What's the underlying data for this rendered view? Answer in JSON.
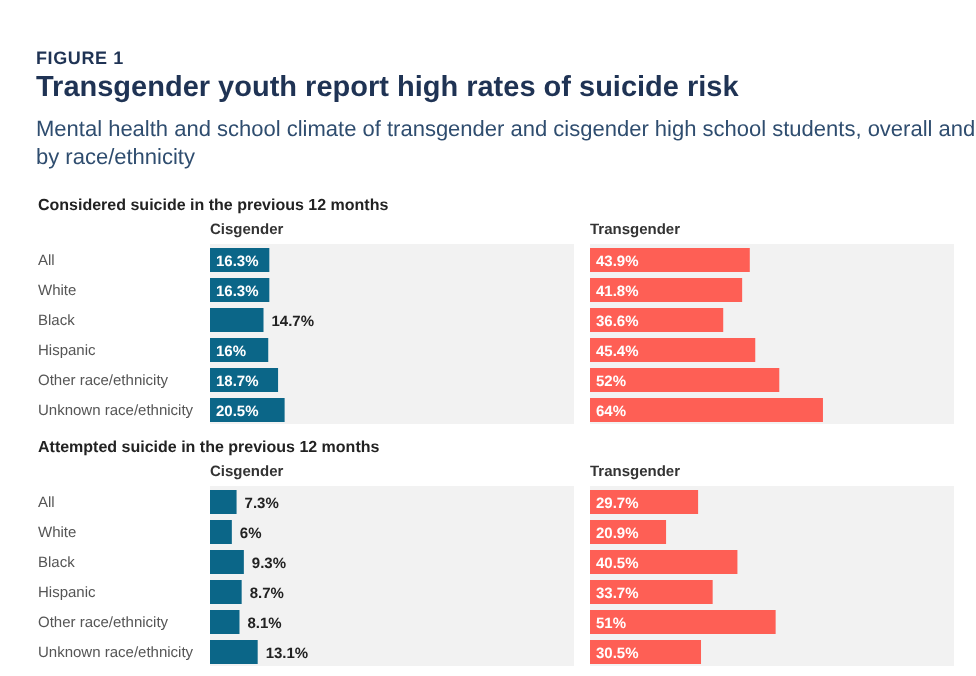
{
  "chart_data": [
    {
      "type": "bar",
      "orientation": "horizontal",
      "annotations": [
        "FIGURE 1",
        "Transgender youth report high rates of suicide risk",
        "Mental health and school climate of transgender and cisgender high school students, overall and by race/ethnicity"
      ],
      "subtitle": "Considered suicide in the previous 12 months",
      "title": "Cisgender",
      "categories": [
        "All",
        "White",
        "Black",
        "Hispanic",
        "Other race/ethnicity",
        "Unknown race/ethnicity"
      ],
      "values": [
        16.3,
        16.3,
        14.7,
        16,
        18.7,
        20.5
      ],
      "value_labels": [
        "16.3%",
        "16.3%",
        "14.7%",
        "16%",
        "18.7%",
        "20.5%"
      ],
      "color": "#0b6688",
      "xlim": [
        0,
        100
      ],
      "tick_labels": "y",
      "bands": [
        {
          "axis": "x",
          "from": 0,
          "to": 100,
          "color": "#f2f2f2"
        }
      ]
    },
    {
      "type": "bar",
      "orientation": "horizontal",
      "title": "Transgender",
      "categories": [
        null,
        null,
        null,
        null,
        null,
        null
      ],
      "values": [
        43.9,
        41.8,
        36.6,
        45.4,
        52,
        64
      ],
      "value_labels": [
        "43.9%",
        "41.8%",
        "36.6%",
        "45.4%",
        "52%",
        "64%"
      ],
      "color": "#fe5f55",
      "xlim": [
        0,
        100
      ],
      "tick_labels": false,
      "bands": [
        {
          "axis": "x",
          "from": 0,
          "to": 100,
          "color": "#f2f2f2"
        }
      ]
    },
    {
      "type": "bar",
      "orientation": "horizontal",
      "subtitle": "Attempted suicide in the previous 12 months",
      "title": "Cisgender",
      "categories": [
        "All",
        "White",
        "Black",
        "Hispanic",
        "Other race/ethnicity",
        "Unknown race/ethnicity"
      ],
      "values": [
        7.3,
        6,
        9.3,
        8.7,
        8.1,
        13.1
      ],
      "value_labels": [
        "7.3%",
        "6%",
        "9.3%",
        "8.7%",
        "8.1%",
        "13.1%"
      ],
      "color": "#0b6688",
      "xlim": [
        0,
        100
      ],
      "tick_labels": "y",
      "bands": [
        {
          "axis": "x",
          "from": 0,
          "to": 100,
          "color": "#f2f2f2"
        }
      ]
    },
    {
      "type": "bar",
      "orientation": "horizontal",
      "title": "Transgender",
      "categories": [
        null,
        null,
        null,
        null,
        null,
        null
      ],
      "values": [
        29.7,
        20.9,
        40.5,
        33.7,
        51,
        30.5
      ],
      "value_labels": [
        "29.7%",
        "20.9%",
        "40.5%",
        "33.7%",
        "51%",
        "30.5%"
      ],
      "color": "#fe5f55",
      "xlim": [
        0,
        100
      ],
      "tick_labels": false,
      "bands": [
        {
          "axis": "x",
          "from": 0,
          "to": 100,
          "color": "#f2f2f2"
        }
      ]
    }
  ]
}
